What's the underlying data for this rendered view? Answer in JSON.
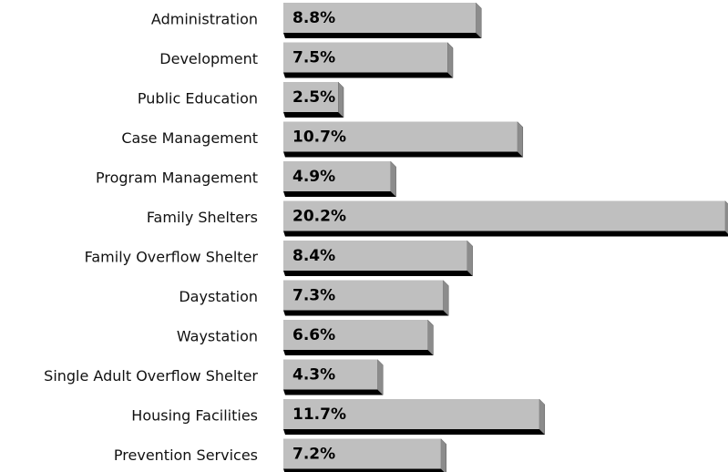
{
  "chart_data": {
    "type": "bar",
    "orientation": "horizontal",
    "categories": [
      "Administration",
      "Development",
      "Public Education",
      "Case Management",
      "Program Management",
      "Family Shelters",
      "Family Overflow Shelter",
      "Daystation",
      "Waystation",
      "Single Adult Overflow Shelter",
      "Housing Facilities",
      "Prevention Services"
    ],
    "values": [
      8.8,
      7.5,
      2.5,
      10.7,
      4.9,
      20.2,
      8.4,
      7.3,
      6.6,
      4.3,
      11.7,
      7.2
    ],
    "value_labels": [
      "8.8%",
      "7.5%",
      "2.5%",
      "10.7%",
      "4.9%",
      "20.2%",
      "8.4%",
      "7.3%",
      "6.6%",
      "4.3%",
      "11.7%",
      "7.2%"
    ],
    "color": "#bfbfbf"
  }
}
